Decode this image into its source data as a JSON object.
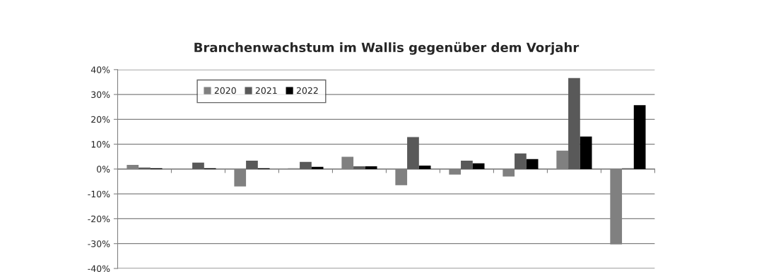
{
  "chart_data": {
    "type": "bar",
    "title": "Branchenwachstum im Wallis gegenüber dem Vorjahr",
    "categories": [
      null,
      null,
      null,
      null,
      null,
      null,
      null,
      null,
      null,
      null
    ],
    "series": [
      {
        "name": "2020",
        "color": "#808080",
        "values": [
          1.7,
          null,
          -7.0,
          0.3,
          4.9,
          -6.5,
          -2.2,
          -3.0,
          7.4,
          -30.3
        ]
      },
      {
        "name": "2021",
        "color": "#595959",
        "values": [
          0.6,
          2.6,
          3.4,
          2.9,
          1.1,
          12.9,
          3.4,
          6.3,
          36.6,
          0.3
        ]
      },
      {
        "name": "2022",
        "color": "#000000",
        "values": [
          0.3,
          0.3,
          0.3,
          0.9,
          1.1,
          1.4,
          2.3,
          4.0,
          13.1,
          25.7
        ]
      }
    ],
    "ylim": [
      -40,
      40
    ],
    "yticks": [
      {
        "value": -40,
        "label": "-40%"
      },
      {
        "value": -30,
        "label": "-30%"
      },
      {
        "value": -20,
        "label": "-20%"
      },
      {
        "value": -10,
        "label": "-10%"
      },
      {
        "value": 0,
        "label": "0%"
      },
      {
        "value": 10,
        "label": "10%"
      },
      {
        "value": 20,
        "label": "20%"
      },
      {
        "value": 30,
        "label": "30%"
      },
      {
        "value": 40,
        "label": "40%"
      }
    ],
    "grid": "y",
    "legend": "top left"
  }
}
